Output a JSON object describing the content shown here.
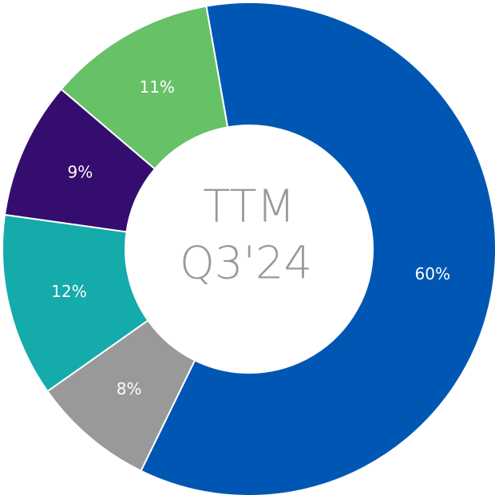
{
  "chart_data": {
    "type": "donut",
    "values": [
      60,
      8,
      12,
      9,
      11
    ],
    "value_labels": [
      "60%",
      "8%",
      "12%",
      "9%",
      "11%"
    ],
    "colors": [
      "#0057b3",
      "#999999",
      "#15abaa",
      "#350d6f",
      "#67c167"
    ],
    "center_text": [
      "TTM",
      "Q3'24"
    ]
  }
}
